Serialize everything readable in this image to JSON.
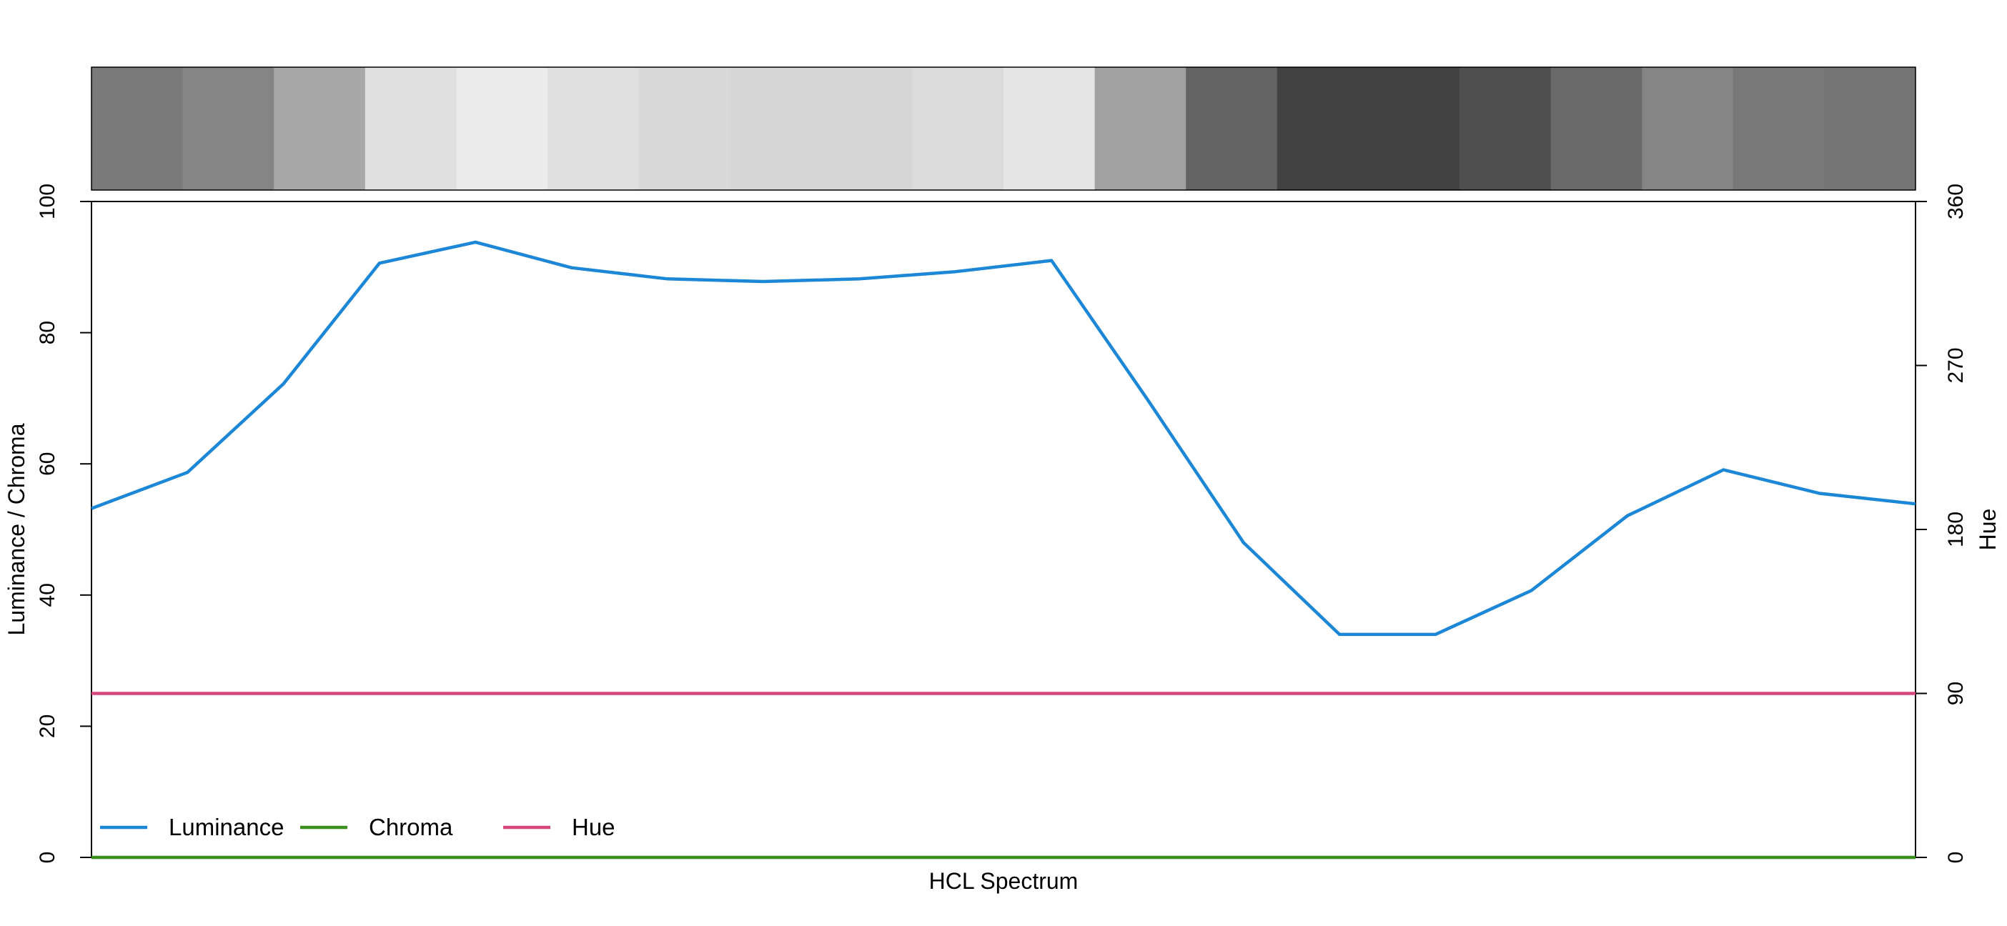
{
  "chart_data": {
    "type": "line",
    "xlabel": "HCL Spectrum",
    "ylabel_left": "Luminance / Chroma",
    "ylabel_right": "Hue",
    "ylim_left": [
      0,
      100
    ],
    "ylim_right": [
      0,
      360
    ],
    "left_ticks": [
      "0",
      "20",
      "40",
      "60",
      "80",
      "100"
    ],
    "right_ticks": [
      "0",
      "90",
      "180",
      "270",
      "360"
    ],
    "grid": false,
    "legend_position": "bottom-left",
    "swatch_luminance": [
      48,
      52,
      66,
      88,
      92,
      88,
      85,
      84,
      84,
      86,
      90,
      63,
      39,
      26,
      26,
      31,
      41,
      52,
      47,
      46
    ],
    "series": [
      {
        "name": "Luminance",
        "axis": "left",
        "color": "#1b87d6",
        "values": [
          53.2,
          58.7,
          72.2,
          90.6,
          93.8,
          89.9,
          88.2,
          87.8,
          88.2,
          89.3,
          91.0,
          69.8,
          48.0,
          34.0,
          34.0,
          40.7,
          52.1,
          59.1,
          55.5,
          53.9
        ]
      },
      {
        "name": "Chroma",
        "axis": "left",
        "color": "#3a8f1e",
        "values": [
          0,
          0,
          0,
          0,
          0,
          0,
          0,
          0,
          0,
          0,
          0,
          0,
          0,
          0,
          0,
          0,
          0,
          0,
          0,
          0
        ]
      },
      {
        "name": "Hue",
        "axis": "right",
        "color": "#d6477c",
        "values": [
          90,
          90,
          90,
          90,
          90,
          90,
          90,
          90,
          90,
          90,
          90,
          90,
          90,
          90,
          90,
          90,
          90,
          90,
          90,
          90
        ]
      }
    ]
  }
}
